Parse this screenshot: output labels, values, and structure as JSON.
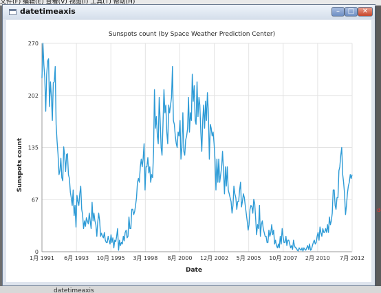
{
  "background": {
    "menubar_text": "文件(F)   编辑(E)   查看(V)   视图(I)   工具(T)   帮助(H)",
    "taskbar_text": "datetimeaxis",
    "right_text": "de"
  },
  "window": {
    "title": "datetimeaxis",
    "buttons": {
      "minimize": "–",
      "maximize": "□",
      "close": "✕"
    }
  },
  "chart_data": {
    "type": "line",
    "title": "Sunspots count (by Space Weather Prediction Center)",
    "xlabel": "Date",
    "ylabel": "Sunspots count",
    "ylim": [
      0,
      270
    ],
    "yticks": [
      "0",
      "67",
      "135",
      "202",
      "270"
    ],
    "xticks": [
      "1月 1991",
      "6月 1993",
      "10月 1995",
      "3月 1998",
      "8月 2000",
      "12月 2002",
      "5月 2005",
      "10月 2007",
      "2月 2010",
      "7月 2012"
    ],
    "grid": true,
    "color": "#2e9bd6",
    "series": [
      {
        "name": "",
        "x_start": "1991-01",
        "x_end": "2012-07",
        "values": [
          225,
          270,
          242,
          226,
          182,
          230,
          247,
          250,
          188,
          220,
          200,
          170,
          219,
          220,
          240,
          165,
          143,
          126,
          100,
          105,
          121,
          96,
          92,
          136,
          125,
          104,
          126,
          127,
          100,
          95,
          77,
          70,
          60,
          80,
          47,
          60,
          32,
          73,
          65,
          60,
          75,
          85,
          55,
          48,
          30,
          40,
          33,
          44,
          40,
          36,
          50,
          40,
          30,
          64,
          40,
          50,
          40,
          35,
          20,
          38,
          50,
          40,
          20,
          24,
          20,
          18,
          25,
          15,
          12,
          12,
          20,
          15,
          10,
          22,
          12,
          18,
          5,
          15,
          13,
          20,
          30,
          2,
          15,
          8,
          12,
          10,
          20,
          14,
          25,
          28,
          18,
          20,
          45,
          30,
          30,
          55,
          55,
          48,
          52,
          60,
          70,
          90,
          95,
          90,
          110,
          120,
          110,
          120,
          140,
          80,
          110,
          110,
          122,
          102,
          110,
          90,
          100,
          96,
          130,
          210,
          160,
          175,
          150,
          140,
          200,
          170,
          135,
          125,
          165,
          210,
          180,
          190,
          155,
          140,
          190,
          180,
          190,
          200,
          240,
          170,
          165,
          150,
          140,
          135,
          155,
          150,
          170,
          120,
          135,
          180,
          130,
          125,
          145,
          150,
          160,
          200,
          155,
          180,
          170,
          230,
          195,
          215,
          170,
          165,
          220,
          175,
          200,
          190,
          155,
          130,
          170,
          190,
          160,
          195,
          170,
          206,
          180,
          120,
          165,
          160,
          150,
          155,
          140,
          120,
          80,
          120,
          90,
          120,
          90,
          100,
          110,
          130,
          105,
          75,
          110,
          85,
          110,
          80,
          75,
          70,
          65,
          50,
          60,
          85,
          75,
          70,
          55,
          65,
          65,
          80,
          90,
          58,
          65,
          75,
          70,
          60,
          50,
          40,
          28,
          35,
          55,
          60,
          58,
          50,
          68,
          62,
          42,
          22,
          35,
          30,
          60,
          20,
          35,
          40,
          30,
          25,
          20,
          20,
          12,
          12,
          28,
          20,
          25,
          35,
          22,
          28,
          10,
          15,
          8,
          5,
          10,
          5,
          20,
          10,
          30,
          20,
          12,
          12,
          20,
          8,
          15,
          15,
          10,
          5,
          8,
          3,
          15,
          8,
          5,
          5,
          2,
          1,
          5,
          3,
          2,
          5,
          1,
          5,
          3,
          2,
          5,
          8,
          3,
          10,
          2,
          3,
          8,
          12,
          15,
          10,
          12,
          20,
          25,
          15,
          32,
          25,
          20,
          30,
          25,
          25,
          30,
          25,
          35,
          25,
          45,
          35,
          40,
          50,
          80,
          80,
          60,
          55,
          70,
          70,
          105,
          110,
          125,
          135,
          100,
          90,
          75,
          48,
          60,
          75,
          85,
          90,
          100,
          95,
          100
        ]
      }
    ]
  }
}
